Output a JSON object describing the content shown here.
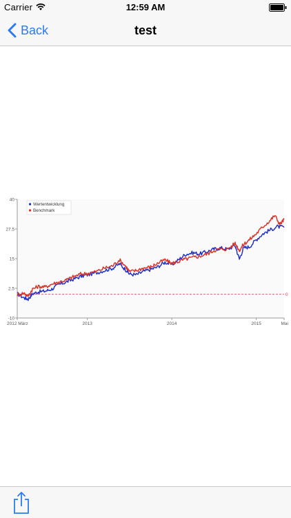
{
  "status_bar": {
    "carrier": "Carrier",
    "time": "12:59 AM"
  },
  "nav": {
    "back_label": "Back",
    "title": "test"
  },
  "toolbar": {
    "share_icon": "share-icon"
  },
  "colors": {
    "accent": "#2a7bf0",
    "series_wertentwicklung": "#2230c8",
    "series_benchmark": "#d8352a",
    "zero_line": "#c84a4a"
  },
  "chart_data": {
    "type": "line",
    "y_ticks": [
      "40",
      "27.5",
      "15",
      "2.5",
      "-10"
    ],
    "y_tick_values": [
      40,
      27.5,
      15,
      2.5,
      -10
    ],
    "ylim": [
      -10,
      40
    ],
    "x_ticks": [
      "2012 März",
      "2013",
      "2014",
      "2015",
      "Mai"
    ],
    "x_tick_values": [
      2012.17,
      2013.0,
      2014.0,
      2015.0,
      2015.33
    ],
    "xlim": [
      2012.17,
      2015.33
    ],
    "reference_line": {
      "value": 0,
      "label": "0"
    },
    "legend_position": "top-left",
    "grid": false,
    "series": [
      {
        "name": "Wertentwicklung",
        "points": [
          [
            2012.17,
            0.2
          ],
          [
            2012.25,
            -1.5
          ],
          [
            2012.3,
            -2.0
          ],
          [
            2012.35,
            0.2
          ],
          [
            2012.42,
            1.0
          ],
          [
            2012.5,
            1.3
          ],
          [
            2012.58,
            2.2
          ],
          [
            2012.66,
            4.0
          ],
          [
            2012.75,
            5.2
          ],
          [
            2012.83,
            6.3
          ],
          [
            2012.92,
            7.5
          ],
          [
            2013.0,
            8.2
          ],
          [
            2013.1,
            9.0
          ],
          [
            2013.2,
            10.0
          ],
          [
            2013.3,
            11.0
          ],
          [
            2013.38,
            12.8
          ],
          [
            2013.45,
            10.5
          ],
          [
            2013.5,
            8.5
          ],
          [
            2013.58,
            8.2
          ],
          [
            2013.66,
            9.5
          ],
          [
            2013.75,
            10.5
          ],
          [
            2013.83,
            11.5
          ],
          [
            2013.92,
            13.5
          ],
          [
            2014.0,
            12.5
          ],
          [
            2014.08,
            14.5
          ],
          [
            2014.16,
            16.8
          ],
          [
            2014.25,
            17.5
          ],
          [
            2014.33,
            17.0
          ],
          [
            2014.42,
            18.0
          ],
          [
            2014.5,
            19.0
          ],
          [
            2014.58,
            19.5
          ],
          [
            2014.66,
            19.0
          ],
          [
            2014.75,
            20.5
          ],
          [
            2014.8,
            14.8
          ],
          [
            2014.85,
            19.5
          ],
          [
            2014.92,
            20.0
          ],
          [
            2015.0,
            23.0
          ],
          [
            2015.08,
            25.5
          ],
          [
            2015.16,
            27.0
          ],
          [
            2015.25,
            28.5
          ],
          [
            2015.33,
            28.2
          ]
        ]
      },
      {
        "name": "Benchmark",
        "points": [
          [
            2012.17,
            -0.2
          ],
          [
            2012.25,
            0.5
          ],
          [
            2012.3,
            -0.8
          ],
          [
            2012.35,
            2.2
          ],
          [
            2012.42,
            3.3
          ],
          [
            2012.5,
            3.0
          ],
          [
            2012.58,
            4.3
          ],
          [
            2012.66,
            5.1
          ],
          [
            2012.75,
            6.0
          ],
          [
            2012.83,
            7.3
          ],
          [
            2012.92,
            8.5
          ],
          [
            2013.0,
            8.8
          ],
          [
            2013.1,
            9.5
          ],
          [
            2013.2,
            11.0
          ],
          [
            2013.3,
            12.0
          ],
          [
            2013.38,
            14.5
          ],
          [
            2013.45,
            12.0
          ],
          [
            2013.5,
            9.5
          ],
          [
            2013.58,
            10.0
          ],
          [
            2013.66,
            11.0
          ],
          [
            2013.75,
            11.5
          ],
          [
            2013.83,
            13.0
          ],
          [
            2013.92,
            14.5
          ],
          [
            2014.0,
            13.0
          ],
          [
            2014.08,
            13.8
          ],
          [
            2014.16,
            14.8
          ],
          [
            2014.25,
            15.5
          ],
          [
            2014.33,
            16.0
          ],
          [
            2014.42,
            17.0
          ],
          [
            2014.5,
            18.5
          ],
          [
            2014.58,
            19.0
          ],
          [
            2014.66,
            19.0
          ],
          [
            2014.75,
            21.5
          ],
          [
            2014.8,
            18.5
          ],
          [
            2014.85,
            21.0
          ],
          [
            2014.92,
            23.0
          ],
          [
            2015.0,
            25.5
          ],
          [
            2015.08,
            28.5
          ],
          [
            2015.16,
            31.0
          ],
          [
            2015.22,
            33.2
          ],
          [
            2015.28,
            29.5
          ],
          [
            2015.33,
            31.5
          ]
        ]
      }
    ]
  }
}
